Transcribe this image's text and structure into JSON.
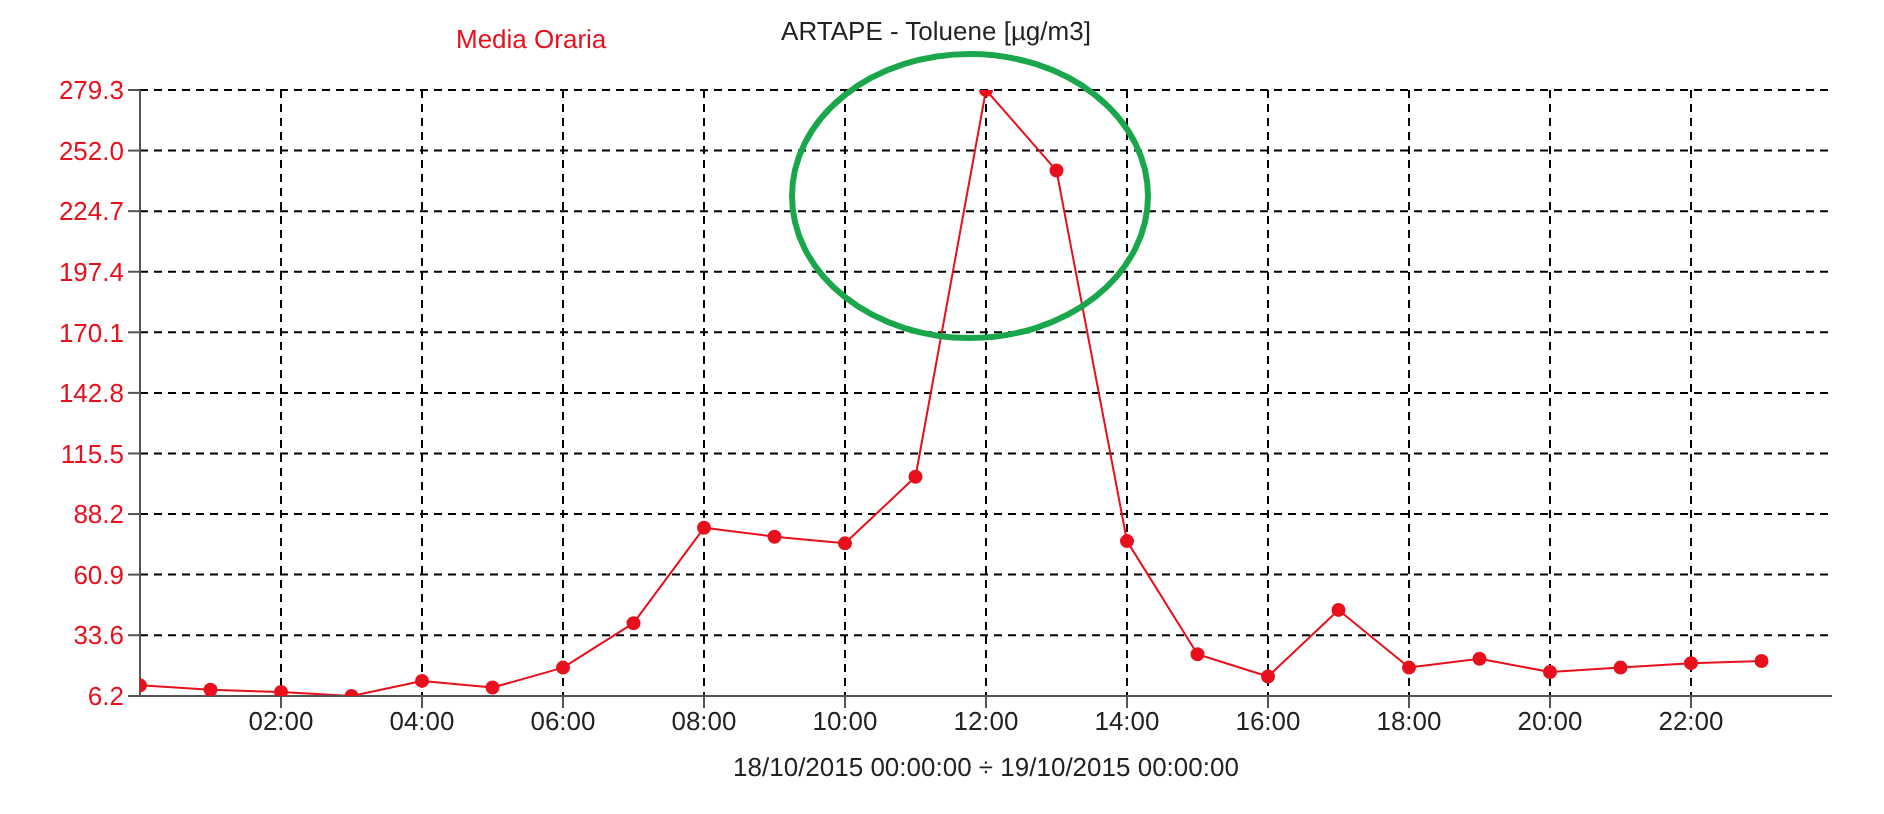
{
  "chart_data": {
    "type": "line",
    "title": "ARTAPE - Toluene [µg/m3]",
    "xlabel": "18/10/2015 00:00:00 ÷ 19/10/2015 00:00:00",
    "x": [
      0,
      1,
      2,
      3,
      4,
      5,
      6,
      7,
      8,
      9,
      10,
      11,
      12,
      13,
      14,
      15,
      16,
      17,
      18,
      19,
      20,
      21,
      22,
      23
    ],
    "series": [
      {
        "name": "Media Oraria",
        "color": "#e8101c",
        "values": [
          11,
          9,
          8,
          6.2,
          13,
          10,
          19,
          39,
          82,
          78,
          75,
          105,
          279.3,
          243,
          76,
          25,
          15,
          45,
          19,
          23,
          17,
          19,
          21,
          22
        ]
      }
    ],
    "xlim": [
      0,
      24
    ],
    "xticks": [
      {
        "value": 2,
        "label": "02:00"
      },
      {
        "value": 4,
        "label": "04:00"
      },
      {
        "value": 6,
        "label": "06:00"
      },
      {
        "value": 8,
        "label": "08:00"
      },
      {
        "value": 10,
        "label": "10:00"
      },
      {
        "value": 12,
        "label": "12:00"
      },
      {
        "value": 14,
        "label": "14:00"
      },
      {
        "value": 16,
        "label": "16:00"
      },
      {
        "value": 18,
        "label": "18:00"
      },
      {
        "value": 20,
        "label": "20:00"
      },
      {
        "value": 22,
        "label": "22:00"
      }
    ],
    "ylim": [
      6.2,
      279.3
    ],
    "yticks": [
      6.2,
      33.6,
      60.9,
      88.2,
      115.5,
      142.8,
      170.1,
      197.4,
      224.7,
      {
        "value": 252,
        "label": "252.0"
      },
      279.3
    ],
    "grid": true,
    "legend": "top left",
    "marker": "circle",
    "line_style": "solid"
  }
}
